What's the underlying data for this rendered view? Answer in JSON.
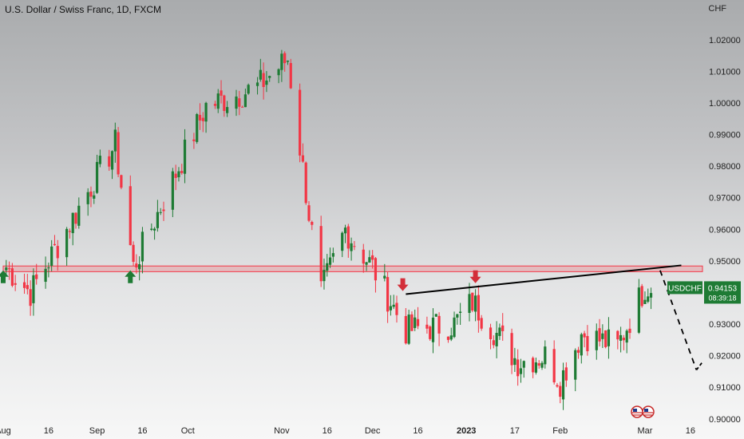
{
  "header": {
    "symbol_title": "U.S. Dollar / Swiss Franc, 1D, FXCM",
    "currency": "CHF"
  },
  "price_badge": {
    "symbol": "USDCHF",
    "price": "0.94153",
    "countdown": "08:39:18"
  },
  "chart_data": {
    "type": "candlestick",
    "y_axis": {
      "ticks": [
        "1.02000",
        "1.01000",
        "1.00000",
        "0.99000",
        "0.98000",
        "0.97000",
        "0.96000",
        "0.95000",
        "0.94000",
        "0.93000",
        "0.92000",
        "0.91000",
        "0.90000"
      ],
      "range": [
        0.8985,
        1.0225
      ],
      "side": "right"
    },
    "x_axis": {
      "labels": [
        "Aug",
        "16",
        "Sep",
        "16",
        "Oct",
        "Nov",
        "16",
        "Dec",
        "16",
        "2023",
        "17",
        "Feb",
        "Mar",
        "16"
      ],
      "bold_labels": [
        "2023"
      ],
      "range": [
        "2022-08-01",
        "2023-03-20"
      ],
      "label_dates": [
        "2022-08-01",
        "2022-08-16",
        "2022-09-01",
        "2022-09-16",
        "2022-10-01",
        "2022-11-01",
        "2022-11-16",
        "2022-12-01",
        "2022-12-16",
        "2023-01-01",
        "2023-01-17",
        "2023-02-01",
        "2023-03-01",
        "2023-03-16"
      ]
    },
    "colors": {
      "up": "#1e7b34",
      "down": "#f23645",
      "support_zone": "#f23645",
      "trendline": "#000000"
    },
    "key_prices": [
      {
        "date": "2022-08-02",
        "price": 0.948
      },
      {
        "date": "2022-08-10",
        "price": 0.94
      },
      {
        "date": "2022-09-07",
        "price": 0.987
      },
      {
        "date": "2022-09-13",
        "price": 0.948
      },
      {
        "date": "2022-10-07",
        "price": 0.999
      },
      {
        "date": "2022-10-24",
        "price": 1.005
      },
      {
        "date": "2022-11-03",
        "price": 1.014
      },
      {
        "date": "2022-11-10",
        "price": 0.965
      },
      {
        "date": "2022-11-14",
        "price": 0.94
      },
      {
        "date": "2022-11-22",
        "price": 0.96
      },
      {
        "date": "2022-12-01",
        "price": 0.948
      },
      {
        "date": "2022-12-12",
        "price": 0.928
      },
      {
        "date": "2022-12-28",
        "price": 0.93
      },
      {
        "date": "2023-01-03",
        "price": 0.937
      },
      {
        "date": "2023-01-18",
        "price": 0.918
      },
      {
        "date": "2023-01-27",
        "price": 0.92
      },
      {
        "date": "2023-02-01",
        "price": 0.912
      },
      {
        "date": "2023-02-08",
        "price": 0.927
      },
      {
        "date": "2023-02-20",
        "price": 0.923
      },
      {
        "date": "2023-03-01",
        "price": 0.942
      },
      {
        "date": "2023-03-06",
        "price": 0.9415
      }
    ],
    "support_zone": {
      "from": 0.9466,
      "to": 0.9484,
      "start_date": "2022-08-01",
      "end_date": "2023-03-20"
    },
    "trendline": {
      "from": {
        "date": "2022-12-12",
        "price": 0.9395
      },
      "to": {
        "date": "2023-03-13",
        "price": 0.9486
      }
    },
    "projection": {
      "points": [
        {
          "date": "2023-03-06",
          "price": 0.947
        },
        {
          "date": "2023-03-18",
          "price": 0.9155
        }
      ],
      "arrow_tip": {
        "date": "2023-03-20",
        "price": 0.918
      }
    },
    "markers": [
      {
        "type": "arrow-up",
        "date": "2022-08-01",
        "price": 0.945,
        "color": "#1e7b34"
      },
      {
        "type": "arrow-up",
        "date": "2022-09-12",
        "price": 0.945,
        "color": "#1e7b34"
      },
      {
        "type": "arrow-down",
        "date": "2022-12-11",
        "price": 0.9425,
        "color": "#d32f3a"
      },
      {
        "type": "arrow-down",
        "date": "2023-01-04",
        "price": 0.945,
        "color": "#d32f3a"
      }
    ]
  }
}
